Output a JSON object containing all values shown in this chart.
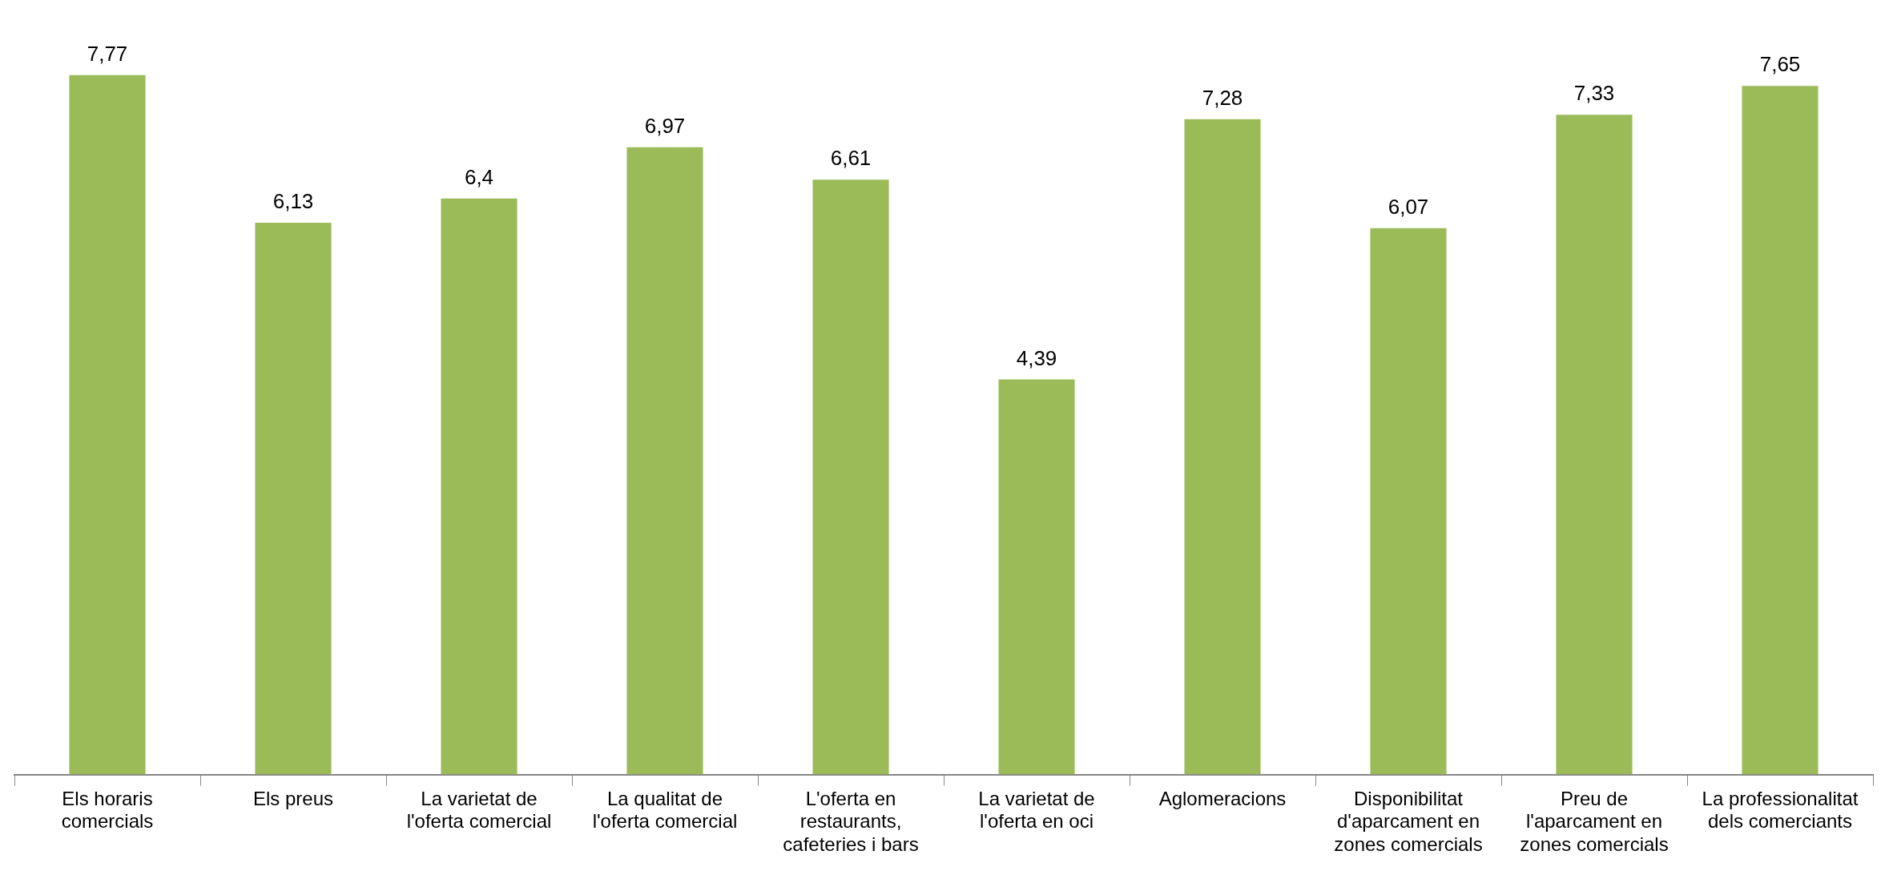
{
  "chart_data": {
    "type": "bar",
    "categories": [
      "Els horaris comercials",
      "Els preus",
      "La varietat de l'oferta comercial",
      "La qualitat de l'oferta comercial",
      "L'oferta en restaurants, cafeteries i bars",
      "La varietat de l'oferta en oci",
      "Aglomeracions",
      "Disponibilitat d'aparcament en zones comercials",
      "Preu de l'aparcament en zones comercials",
      "La professionalitat dels comerciants"
    ],
    "values": [
      7.77,
      6.13,
      6.4,
      6.97,
      6.61,
      4.39,
      7.28,
      6.07,
      7.33,
      7.65
    ],
    "value_labels": [
      "7,77",
      "6,13",
      "6,4",
      "6,97",
      "6,61",
      "4,39",
      "7,28",
      "6,07",
      "7,33",
      "7,65"
    ],
    "color": "#9bbb59",
    "grid": false,
    "legend": false,
    "tick_labels": "x"
  }
}
